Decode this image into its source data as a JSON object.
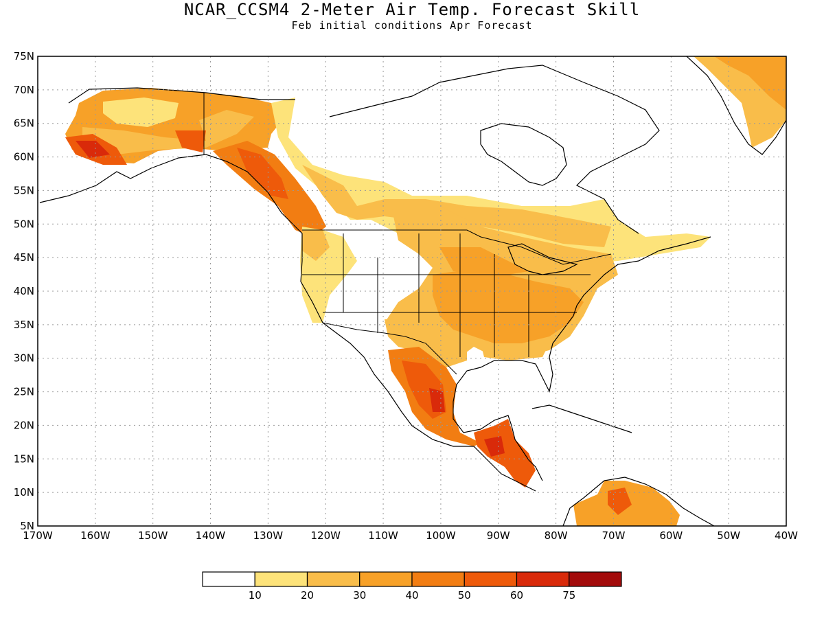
{
  "title": "NCAR_CCSM4 2-Meter Air Temp. Forecast Skill",
  "subtitle": "Feb initial conditions  Apr Forecast",
  "map": {
    "lat_labels": [
      "75N",
      "70N",
      "65N",
      "60N",
      "55N",
      "50N",
      "45N",
      "40N",
      "35N",
      "30N",
      "25N",
      "20N",
      "15N",
      "10N",
      "5N"
    ],
    "lon_labels": [
      "170W",
      "160W",
      "150W",
      "140W",
      "130W",
      "120W",
      "110W",
      "100W",
      "90W",
      "80W",
      "70W",
      "60W",
      "50W",
      "40W"
    ],
    "lat_range": [
      5,
      75
    ],
    "lon_range": [
      -170,
      -40
    ],
    "grid": "dotted"
  },
  "legend": {
    "colors": [
      "#ffffff",
      "#fde37a",
      "#f9bd4a",
      "#f7a128",
      "#f27d12",
      "#ee5a0a",
      "#d92a0a",
      "#a30b0b"
    ],
    "labels": [
      "10",
      "20",
      "30",
      "40",
      "50",
      "60",
      "75"
    ]
  },
  "regions": [
    {
      "name": "alaska",
      "level": 2
    },
    {
      "name": "sw-alaska",
      "level": 5
    },
    {
      "name": "bc-coast",
      "level": 4
    },
    {
      "name": "canada-band",
      "level": 1
    },
    {
      "name": "great-plains",
      "level": 2
    },
    {
      "name": "eastern-us",
      "level": 2
    },
    {
      "name": "mexico",
      "level": 4
    },
    {
      "name": "central-america",
      "level": 5
    },
    {
      "name": "south-america-north",
      "level": 3
    },
    {
      "name": "greenland",
      "level": 2
    }
  ]
}
